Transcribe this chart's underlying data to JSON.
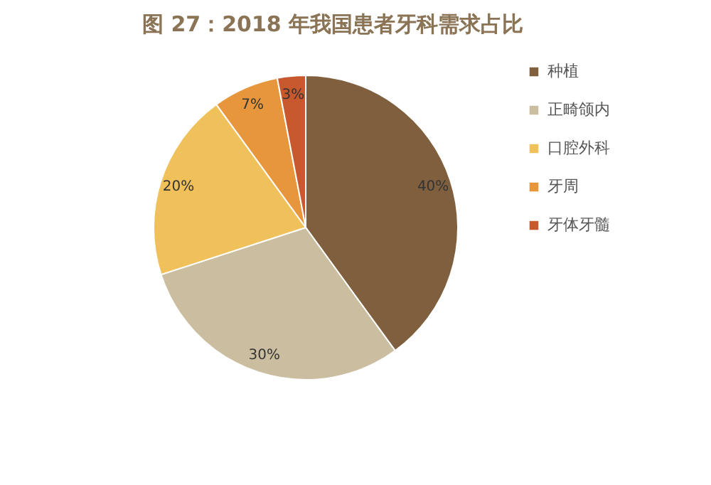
{
  "chart_data": {
    "type": "pie",
    "title": "图 27：2018 年我国患者牙科需求占比",
    "categories": [
      "种植",
      "正畸颌内",
      "口腔外科",
      "牙周",
      "牙体牙髓"
    ],
    "values": [
      40,
      30,
      20,
      7,
      3
    ],
    "colors": [
      "#7f5f3d",
      "#cbbd9f",
      "#f0c05a",
      "#e8963c",
      "#c8582e"
    ],
    "value_labels": [
      "40%",
      "30%",
      "20%",
      "7%",
      "3%"
    ],
    "legend": "right"
  }
}
